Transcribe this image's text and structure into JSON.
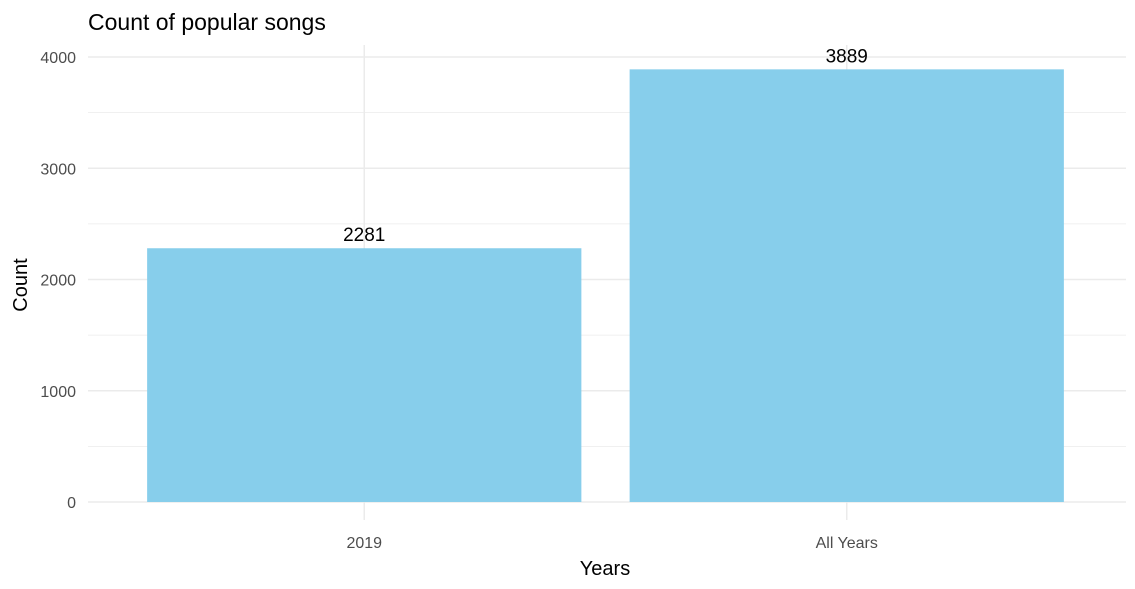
{
  "chart_data": {
    "type": "bar",
    "title": "Count of popular songs",
    "xlabel": "Years",
    "ylabel": "Count",
    "categories": [
      "2019",
      "All Years"
    ],
    "values": [
      2281,
      3889
    ],
    "data_labels": [
      "2281",
      "3889"
    ],
    "ylim": [
      0,
      4100
    ],
    "yticks": [
      0,
      1000,
      2000,
      3000,
      4000
    ],
    "ytick_labels": [
      "0",
      "1000",
      "2000",
      "3000",
      "4000"
    ],
    "grid": true,
    "bar_color": "#87CEEB",
    "grid_color": "#ebebeb"
  }
}
